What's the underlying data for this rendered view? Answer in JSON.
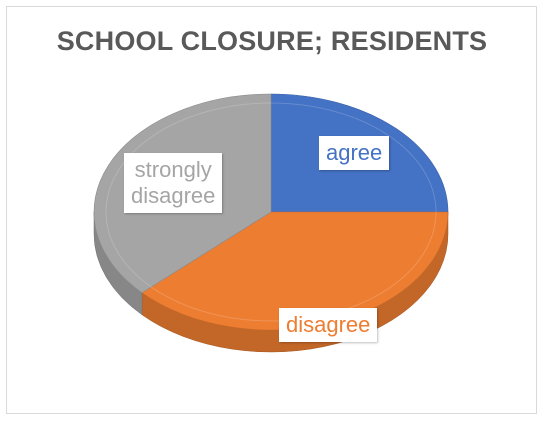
{
  "chart_data": {
    "type": "pie",
    "title": "SCHOOL CLOSURE; RESIDENTS",
    "categories": [
      "agree",
      "disagree",
      "strongly disagree"
    ],
    "values": [
      25,
      38,
      37
    ],
    "colors": [
      "#4472c4",
      "#ed7d31",
      "#a5a5a5"
    ],
    "data_labels": [
      "agree",
      "disagree",
      "strongly\ndisagree"
    ],
    "legend": "none",
    "style": "3d"
  }
}
